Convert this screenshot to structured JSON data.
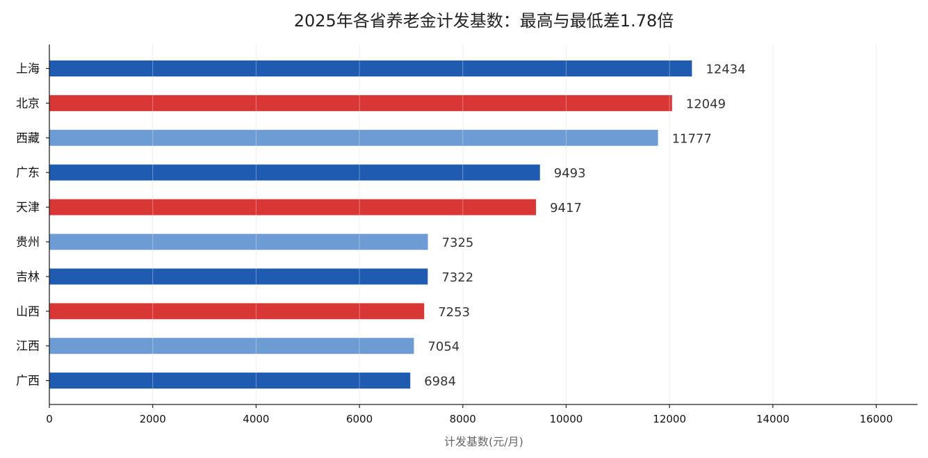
{
  "chart_data": {
    "type": "bar",
    "orientation": "horizontal",
    "title": "2025年各省养老金计发基数：最高与最低差1.78倍",
    "xlabel": "计发基数(元/月)",
    "ylabel": "",
    "categories": [
      "上海",
      "北京",
      "西藏",
      "广东",
      "天津",
      "贵州",
      "吉林",
      "山西",
      "江西",
      "广西"
    ],
    "values": [
      12434,
      12049,
      11777,
      9493,
      9417,
      7325,
      7322,
      7253,
      7054,
      6984
    ],
    "bar_colors": [
      "#1f5bb0",
      "#d93636",
      "#6d9bd4",
      "#1f5bb0",
      "#d93636",
      "#6d9bd4",
      "#1f5bb0",
      "#d93636",
      "#6d9bd4",
      "#1f5bb0"
    ],
    "xlim": [
      0,
      16800
    ],
    "xticks": [
      0,
      2000,
      4000,
      6000,
      8000,
      10000,
      12000,
      14000,
      16000
    ],
    "grid": "vertical",
    "data_labels": true,
    "legend": "none"
  }
}
